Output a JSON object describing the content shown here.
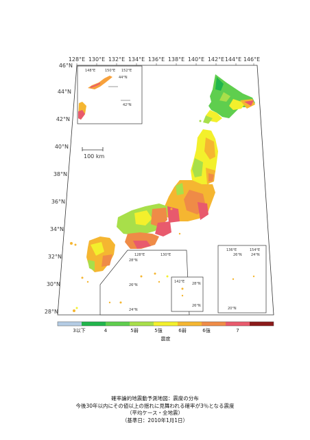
{
  "map": {
    "top_labels": [
      "128°E",
      "130°E",
      "132°E",
      "134°E",
      "136°E",
      "138°E",
      "140°E",
      "142°E",
      "144°E",
      "146°E"
    ],
    "left_labels": [
      "46°N",
      "44°N",
      "42°N",
      "40°N",
      "38°N",
      "36°N",
      "34°N",
      "32°N",
      "30°N",
      "28°N"
    ],
    "scale_bar_label": "100 km",
    "inset_labels": {
      "tl_a": "148°E",
      "tl_b": "150°E",
      "tl_c": "152°E",
      "tl_lat": "44°N",
      "tl_lat2": "42°N",
      "sw_a": "128°E",
      "sw_b": "130°E",
      "sw_lat1": "28°N",
      "sw_lat2": "26°N",
      "sw_lat3": "24°N",
      "mid_a": "142°E",
      "mid_lat1": "28°N",
      "mid_lat2": "26°N",
      "se_a": "136°E",
      "se_b": "154°E",
      "se_lat1": "26°N",
      "se_lat2": "24°N",
      "se_lat3": "20°N"
    }
  },
  "legend": {
    "colors": [
      "#b4cce4",
      "#21b54c",
      "#5fce4e",
      "#a8df4a",
      "#f3f02c",
      "#f5b631",
      "#ef8b47",
      "#e85a6d",
      "#8b1a1a"
    ],
    "tick_labels": [
      "3以下",
      "4",
      "5弱",
      "5強",
      "6弱",
      "6強",
      "7"
    ],
    "title": "震度"
  },
  "caption": {
    "line1": "確率論的地震動予測地図：震度の分布",
    "line2": "今後30年以内にその値以上の揺れに見舞われる確率が3％となる震度",
    "line3": "（平均ケース・全地震）",
    "line4": "（基準日：2010年1月1日）"
  }
}
